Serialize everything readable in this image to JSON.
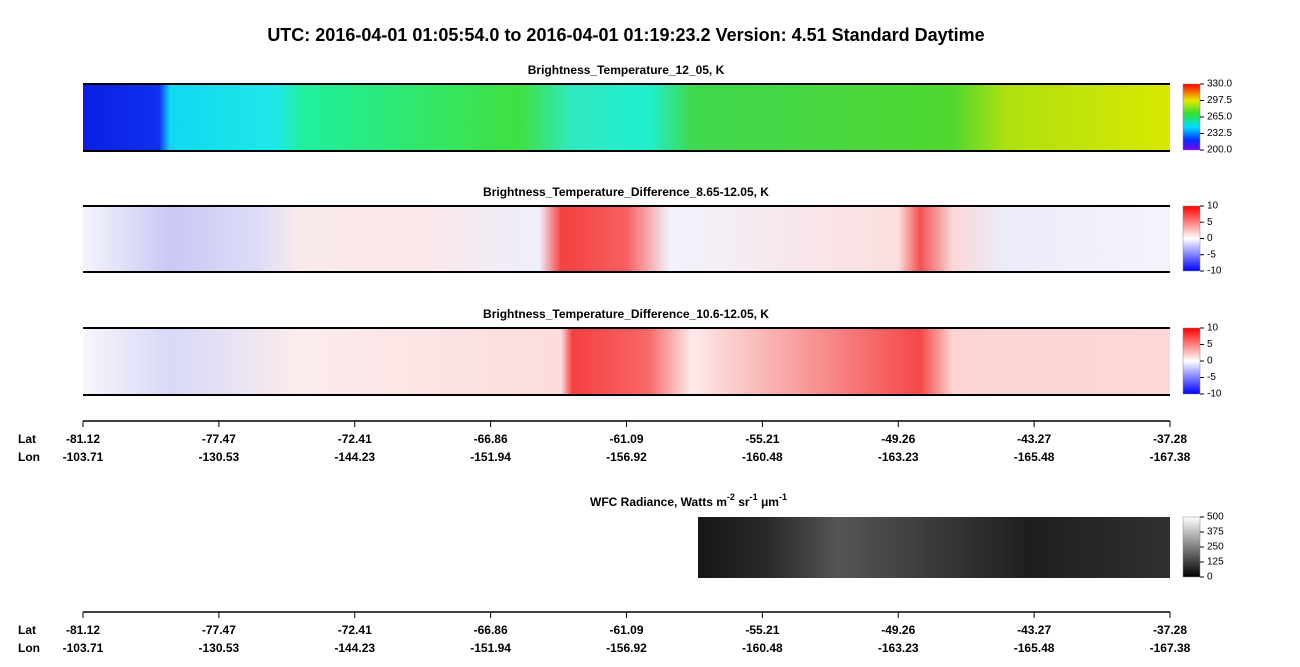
{
  "header": {
    "title": "UTC:  2016-04-01   01:05:54.0  to  2016-04-01   01:19:23.2    Version: 4.51  Standard Daytime"
  },
  "panels": [
    {
      "title": "Brightness_Temperature_12_05, K",
      "colorbar": {
        "lim": [
          200,
          330
        ],
        "ticks": [
          {
            "value": 330,
            "label": "330.0"
          },
          {
            "value": 297.5,
            "label": "297.5"
          },
          {
            "value": 265,
            "label": "265.0"
          },
          {
            "value": 232.5,
            "label": "232.5"
          },
          {
            "value": 200,
            "label": "200.0"
          }
        ]
      }
    },
    {
      "title": "Brightness_Temperature_Difference_8.65-12.05, K",
      "colorbar": {
        "lim": [
          -10,
          10
        ],
        "ticks": [
          10,
          5,
          0,
          -5,
          -10
        ]
      }
    },
    {
      "title": "Brightness_Temperature_Difference_10.6-12.05, K",
      "colorbar": {
        "lim": [
          -10,
          10
        ],
        "ticks": [
          10,
          5,
          0,
          -5,
          -10
        ]
      }
    },
    {
      "title": "WFC Radiance, Watts m",
      "title_parts": [
        "-2",
        " sr",
        "-1",
        " μm",
        "-1"
      ],
      "colorbar": {
        "lim": [
          0,
          500
        ],
        "ticks": [
          500,
          375,
          250,
          125,
          0
        ]
      }
    }
  ],
  "axes": [
    {
      "lat_label": "Lat",
      "lon_label": "Lon",
      "lat": [
        -81.12,
        -77.47,
        -72.41,
        -66.86,
        -61.09,
        -55.21,
        -49.26,
        -43.27,
        -37.28
      ],
      "lon": [
        -103.71,
        -130.53,
        -144.23,
        -151.94,
        -156.92,
        -160.48,
        -163.23,
        -165.48,
        -167.38
      ]
    },
    {
      "lat_label": "Lat",
      "lon_label": "Lon",
      "lat": [
        -81.12,
        -77.47,
        -72.41,
        -66.86,
        -61.09,
        -55.21,
        -49.26,
        -43.27,
        -37.28
      ],
      "lon": [
        -103.71,
        -130.53,
        -144.23,
        -151.94,
        -156.92,
        -160.48,
        -163.23,
        -165.48,
        -167.38
      ]
    }
  ]
}
